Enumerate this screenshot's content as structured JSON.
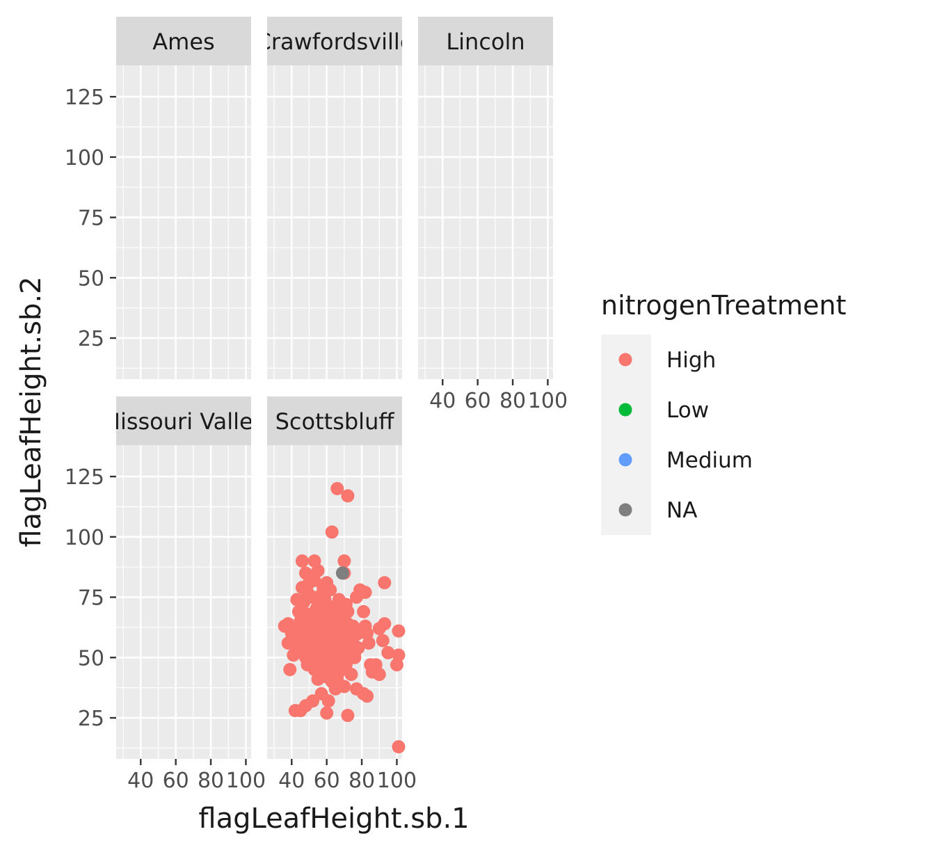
{
  "chart_data": {
    "type": "scatter",
    "xlabel": "flagLeafHeight.sb.1",
    "ylabel": "flagLeafHeight.sb.2",
    "xlim": [
      26,
      103
    ],
    "ylim": [
      8,
      138
    ],
    "x_ticks": [
      40,
      60,
      80,
      100
    ],
    "x_tick_labels": [
      "40",
      "60",
      "80",
      "100"
    ],
    "y_ticks": [
      25,
      50,
      75,
      100,
      125
    ],
    "y_tick_labels": [
      "25",
      "50",
      "75",
      "100",
      "125"
    ],
    "grid": true,
    "legend": {
      "title": "nitrogenTreatment",
      "placement": "right",
      "entries": [
        {
          "label": "High",
          "color": "#F8766D"
        },
        {
          "label": "Low",
          "color": "#00BA38"
        },
        {
          "label": "Medium",
          "color": "#619CFF"
        },
        {
          "label": "NA",
          "color": "#7F7F7F"
        }
      ]
    },
    "facets": [
      {
        "label": "Ames",
        "points": []
      },
      {
        "label": "Crawfordsville",
        "points": []
      },
      {
        "label": "Lincoln",
        "points": []
      },
      {
        "label": "Missouri Valley",
        "points": []
      },
      {
        "label": "Scottsbluff",
        "points": [
          [
            66,
            120
          ],
          [
            72,
            117
          ],
          [
            63,
            102
          ],
          [
            46,
            90
          ],
          [
            53,
            90
          ],
          [
            70,
            90
          ],
          [
            70,
            85
          ],
          [
            93,
            81
          ],
          [
            48,
            85
          ],
          [
            55,
            86
          ],
          [
            43,
            74
          ],
          [
            46,
            79
          ],
          [
            50,
            81
          ],
          [
            53,
            82
          ],
          [
            58,
            79
          ],
          [
            60,
            81
          ],
          [
            47,
            73
          ],
          [
            52,
            75
          ],
          [
            57,
            76
          ],
          [
            62,
            78
          ],
          [
            67,
            74
          ],
          [
            71,
            72
          ],
          [
            79,
            78
          ],
          [
            82,
            77
          ],
          [
            77,
            75
          ],
          [
            49,
            68
          ],
          [
            54,
            70
          ],
          [
            59,
            69
          ],
          [
            64,
            71
          ],
          [
            68,
            67
          ],
          [
            72,
            69
          ],
          [
            36,
            63
          ],
          [
            41,
            62
          ],
          [
            45,
            65
          ],
          [
            40,
            60
          ],
          [
            48,
            64
          ],
          [
            53,
            62
          ],
          [
            57,
            65
          ],
          [
            61,
            63
          ],
          [
            65,
            62
          ],
          [
            69,
            64
          ],
          [
            73,
            61
          ],
          [
            78,
            60
          ],
          [
            82,
            63
          ],
          [
            90,
            62
          ],
          [
            93,
            64
          ],
          [
            101,
            61
          ],
          [
            81,
            69
          ],
          [
            83,
            60
          ],
          [
            38,
            56
          ],
          [
            42,
            55
          ],
          [
            46,
            58
          ],
          [
            50,
            57
          ],
          [
            54,
            59
          ],
          [
            58,
            56
          ],
          [
            62,
            58
          ],
          [
            66,
            55
          ],
          [
            70,
            57
          ],
          [
            74,
            56
          ],
          [
            78,
            54
          ],
          [
            84,
            56
          ],
          [
            92,
            57
          ],
          [
            41,
            51
          ],
          [
            44,
            53
          ],
          [
            48,
            50
          ],
          [
            52,
            52
          ],
          [
            56,
            49
          ],
          [
            60,
            51
          ],
          [
            64,
            50
          ],
          [
            68,
            52
          ],
          [
            72,
            49
          ],
          [
            76,
            50
          ],
          [
            95,
            52
          ],
          [
            101,
            51
          ],
          [
            49,
            47
          ],
          [
            53,
            45
          ],
          [
            57,
            47
          ],
          [
            62,
            46
          ],
          [
            67,
            44
          ],
          [
            71,
            47
          ],
          [
            85,
            47
          ],
          [
            88,
            47
          ],
          [
            100,
            47
          ],
          [
            39,
            45
          ],
          [
            86,
            44
          ],
          [
            90,
            43
          ],
          [
            55,
            41
          ],
          [
            60,
            42
          ],
          [
            66,
            41
          ],
          [
            74,
            43
          ],
          [
            77,
            37
          ],
          [
            81,
            35
          ],
          [
            83,
            34
          ],
          [
            65,
            37
          ],
          [
            70,
            38
          ],
          [
            57,
            35
          ],
          [
            61,
            32
          ],
          [
            52,
            32
          ],
          [
            48,
            30
          ],
          [
            45,
            28
          ],
          [
            42,
            28
          ],
          [
            60,
            27
          ],
          [
            72,
            26
          ],
          [
            101,
            13
          ],
          [
            38,
            64
          ],
          [
            43,
            60
          ],
          [
            47,
            61
          ],
          [
            51,
            58
          ],
          [
            55,
            63
          ],
          [
            59,
            60
          ],
          [
            63,
            59
          ],
          [
            67,
            61
          ],
          [
            71,
            60
          ],
          [
            75,
            63
          ],
          [
            44,
            57
          ],
          [
            49,
            55
          ],
          [
            53,
            54
          ],
          [
            58,
            53
          ],
          [
            63,
            54
          ],
          [
            68,
            58
          ],
          [
            73,
            54
          ],
          [
            56,
            66
          ],
          [
            61,
            67
          ],
          [
            65,
            66
          ],
          [
            69,
            70
          ],
          [
            66,
            48
          ],
          [
            61,
            49
          ],
          [
            54,
            46
          ],
          [
            58,
            50
          ],
          [
            62,
            55
          ],
          [
            51,
            61
          ],
          [
            55,
            72
          ],
          [
            49,
            77
          ],
          [
            44,
            69
          ],
          [
            57,
            61
          ],
          [
            67,
            58
          ],
          [
            63,
            63
          ],
          [
            59,
            74
          ],
          [
            52,
            66
          ],
          [
            46,
            55
          ],
          [
            50,
            50
          ],
          [
            64,
            45
          ],
          [
            70,
            53
          ],
          [
            75,
            58
          ],
          [
            56,
            57
          ],
          [
            60,
            65
          ],
          [
            65,
            52
          ],
          [
            48,
            59
          ],
          [
            53,
            57
          ],
          [
            57,
            53
          ],
          [
            61,
            61
          ],
          [
            69,
            49
          ],
          [
            74,
            51
          ],
          [
            58,
            59
          ],
          [
            54,
            56
          ],
          [
            66,
            63
          ],
          [
            62,
            69
          ],
          [
            47,
            67
          ],
          [
            43,
            58
          ],
          [
            51,
            47
          ],
          [
            55,
            51
          ],
          [
            59,
            44
          ],
          [
            63,
            40
          ],
          [
            68,
            66
          ],
          [
            72,
            64
          ],
          [
            76,
            52
          ],
          [
            40,
            57
          ],
          [
            45,
            62
          ],
          [
            50,
            64
          ],
          [
            60,
            56
          ]
        ]
      }
    ],
    "na_points": [
      [
        69,
        85
      ]
    ]
  }
}
